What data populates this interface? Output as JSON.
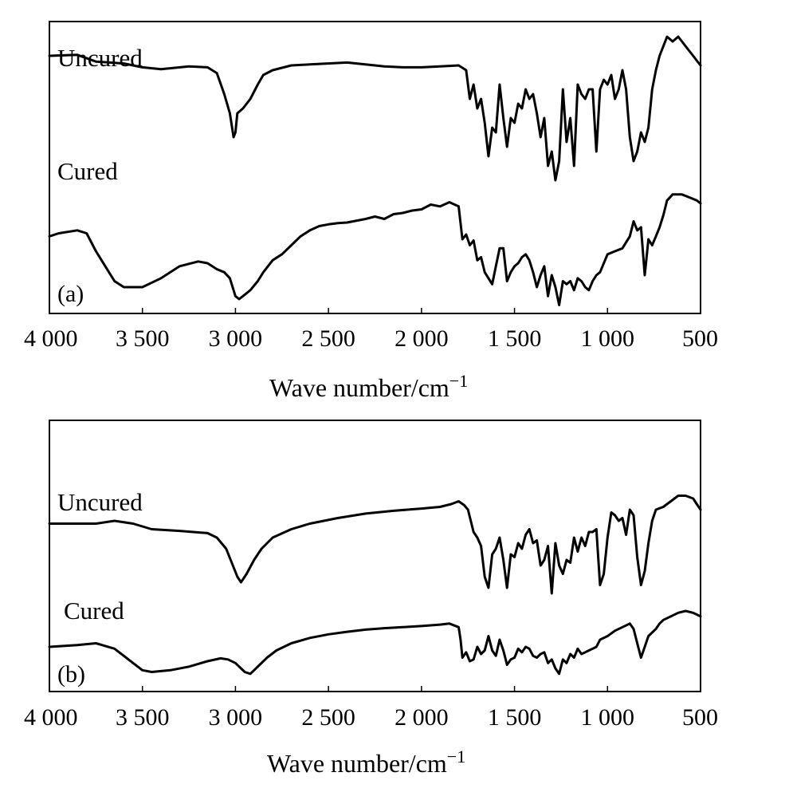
{
  "chart_data": [
    {
      "type": "line",
      "panel_label": "(a)",
      "xlabel": "Wave number/cm",
      "xlabel_superscript": "−1",
      "ylabel": "",
      "xlim": [
        4000,
        500
      ],
      "x_reversed": true,
      "ticks": [
        "4 000",
        "3 500",
        "3 000",
        "2 500",
        "2 000",
        "1 500",
        "1 000",
        "500"
      ],
      "tick_values": [
        4000,
        3500,
        3000,
        2500,
        2000,
        1500,
        1000,
        500
      ],
      "grid": false,
      "series": [
        {
          "name": "Uncured",
          "x": [
            4000,
            3850,
            3750,
            3600,
            3500,
            3400,
            3250,
            3150,
            3100,
            3060,
            3030,
            3010,
            3000,
            2990,
            2960,
            2920,
            2880,
            2850,
            2800,
            2700,
            2600,
            2400,
            2250,
            2200,
            2100,
            2000,
            1900,
            1800,
            1760,
            1740,
            1720,
            1700,
            1680,
            1660,
            1640,
            1620,
            1600,
            1580,
            1560,
            1540,
            1520,
            1500,
            1480,
            1460,
            1440,
            1420,
            1400,
            1380,
            1360,
            1340,
            1320,
            1300,
            1280,
            1260,
            1240,
            1220,
            1200,
            1180,
            1160,
            1140,
            1120,
            1100,
            1080,
            1060,
            1040,
            1020,
            1000,
            980,
            960,
            940,
            920,
            900,
            880,
            860,
            840,
            820,
            800,
            780,
            760,
            740,
            720,
            700,
            680,
            650,
            620,
            580,
            540,
            520,
            500
          ],
          "y": [
            0.25,
            0.26,
            0.19,
            0.17,
            0.13,
            0.11,
            0.14,
            0.13,
            0.07,
            -0.15,
            -0.35,
            -0.6,
            -0.55,
            -0.35,
            -0.3,
            -0.2,
            -0.05,
            0.05,
            0.1,
            0.15,
            0.16,
            0.18,
            0.15,
            0.14,
            0.13,
            0.13,
            0.14,
            0.15,
            0.1,
            -0.2,
            -0.05,
            -0.3,
            -0.2,
            -0.45,
            -0.8,
            -0.5,
            -0.55,
            -0.05,
            -0.4,
            -0.7,
            -0.4,
            -0.45,
            -0.25,
            -0.3,
            -0.1,
            -0.2,
            -0.15,
            -0.35,
            -0.6,
            -0.4,
            -0.9,
            -0.75,
            -1.05,
            -0.85,
            -0.1,
            -0.65,
            -0.4,
            -0.9,
            -0.05,
            -0.15,
            -0.2,
            -0.1,
            -0.1,
            -0.75,
            -0.1,
            0.0,
            -0.05,
            0.05,
            -0.2,
            -0.1,
            0.1,
            -0.1,
            -0.6,
            -0.85,
            -0.75,
            -0.55,
            -0.65,
            -0.5,
            -0.1,
            0.1,
            0.25,
            0.35,
            0.45,
            0.4,
            0.45,
            0.35,
            0.25,
            0.2,
            0.15
          ]
        },
        {
          "name": "Cured",
          "x": [
            4000,
            3950,
            3850,
            3800,
            3750,
            3650,
            3600,
            3500,
            3400,
            3300,
            3200,
            3150,
            3100,
            3060,
            3030,
            3010,
            3000,
            2980,
            2960,
            2920,
            2880,
            2850,
            2800,
            2750,
            2700,
            2650,
            2600,
            2550,
            2500,
            2450,
            2400,
            2300,
            2250,
            2200,
            2150,
            2100,
            2050,
            2000,
            1950,
            1900,
            1850,
            1800,
            1780,
            1760,
            1740,
            1720,
            1700,
            1680,
            1660,
            1640,
            1620,
            1600,
            1580,
            1560,
            1540,
            1520,
            1500,
            1480,
            1460,
            1440,
            1420,
            1400,
            1380,
            1360,
            1340,
            1320,
            1300,
            1280,
            1260,
            1240,
            1220,
            1200,
            1180,
            1160,
            1140,
            1120,
            1100,
            1080,
            1060,
            1040,
            1000,
            960,
            920,
            900,
            880,
            860,
            840,
            820,
            800,
            780,
            760,
            740,
            720,
            700,
            680,
            650,
            600,
            560,
            520,
            500
          ],
          "y": [
            -0.55,
            -0.5,
            -0.45,
            -0.5,
            -0.8,
            -1.3,
            -1.4,
            -1.4,
            -1.25,
            -1.05,
            -0.97,
            -1.0,
            -1.1,
            -1.15,
            -1.25,
            -1.45,
            -1.55,
            -1.6,
            -1.55,
            -1.45,
            -1.3,
            -1.15,
            -0.95,
            -0.85,
            -0.7,
            -0.55,
            -0.45,
            -0.38,
            -0.35,
            -0.33,
            -0.32,
            -0.26,
            -0.22,
            -0.26,
            -0.18,
            -0.16,
            -0.12,
            -0.1,
            -0.02,
            -0.05,
            0.02,
            -0.05,
            -0.6,
            -0.52,
            -0.7,
            -0.62,
            -0.95,
            -0.9,
            -1.15,
            -1.25,
            -1.35,
            -1.05,
            -0.75,
            -0.75,
            -1.3,
            -1.15,
            -1.05,
            -1.0,
            -0.9,
            -0.85,
            -0.95,
            -1.15,
            -1.4,
            -1.2,
            -1.05,
            -1.55,
            -1.2,
            -1.4,
            -1.7,
            -1.3,
            -1.35,
            -1.3,
            -1.45,
            -1.25,
            -1.3,
            -1.4,
            -1.45,
            -1.3,
            -1.2,
            -1.15,
            -0.85,
            -0.8,
            -0.75,
            -0.65,
            -0.55,
            -0.3,
            -0.45,
            -0.4,
            -1.2,
            -0.6,
            -0.7,
            -0.55,
            -0.4,
            -0.2,
            0.05,
            0.15,
            0.15,
            0.1,
            0.05,
            0.0
          ]
        }
      ]
    },
    {
      "type": "line",
      "panel_label": "(b)",
      "xlabel": "Wave number/cm",
      "xlabel_superscript": "−1",
      "ylabel": "",
      "xlim": [
        4000,
        500
      ],
      "x_reversed": true,
      "ticks": [
        "4 000",
        "3 500",
        "3 000",
        "2 500",
        "2 000",
        "1 500",
        "1 000",
        "500"
      ],
      "tick_values": [
        4000,
        3500,
        3000,
        2500,
        2000,
        1500,
        1000,
        500
      ],
      "grid": false,
      "series": [
        {
          "name": "Uncured",
          "x": [
            4000,
            3850,
            3750,
            3650,
            3550,
            3450,
            3300,
            3150,
            3100,
            3050,
            3020,
            2990,
            2970,
            2940,
            2900,
            2860,
            2800,
            2700,
            2600,
            2450,
            2300,
            2150,
            2000,
            1900,
            1840,
            1800,
            1770,
            1750,
            1720,
            1700,
            1680,
            1660,
            1640,
            1620,
            1600,
            1580,
            1560,
            1540,
            1520,
            1500,
            1480,
            1460,
            1440,
            1420,
            1400,
            1380,
            1360,
            1340,
            1320,
            1300,
            1280,
            1260,
            1240,
            1220,
            1200,
            1180,
            1160,
            1140,
            1120,
            1100,
            1080,
            1060,
            1040,
            1020,
            1000,
            980,
            960,
            940,
            920,
            900,
            880,
            860,
            840,
            820,
            800,
            780,
            760,
            740,
            700,
            660,
            620,
            580,
            540,
            520,
            500
          ],
          "y": [
            0.05,
            0.05,
            0.05,
            0.1,
            0.05,
            -0.05,
            -0.08,
            -0.12,
            -0.2,
            -0.4,
            -0.65,
            -0.9,
            -1.0,
            -0.85,
            -0.6,
            -0.4,
            -0.2,
            -0.05,
            0.05,
            0.15,
            0.23,
            0.28,
            0.32,
            0.35,
            0.4,
            0.45,
            0.38,
            0.3,
            -0.1,
            -0.2,
            -0.35,
            -0.9,
            -1.1,
            -0.5,
            -0.4,
            -0.2,
            -0.6,
            -1.1,
            -0.5,
            -0.55,
            -0.3,
            -0.4,
            -0.15,
            -0.05,
            -0.3,
            -0.25,
            -0.7,
            -0.6,
            -0.35,
            -1.2,
            -0.3,
            -0.7,
            -0.85,
            -0.6,
            -0.65,
            -0.2,
            -0.45,
            -0.2,
            -0.35,
            -0.1,
            -0.1,
            -0.05,
            -1.05,
            -0.85,
            -0.2,
            0.25,
            0.2,
            0.1,
            0.15,
            -0.15,
            0.3,
            0.2,
            -0.55,
            -1.05,
            -0.8,
            -0.3,
            0.1,
            0.3,
            0.35,
            0.45,
            0.55,
            0.55,
            0.5,
            0.4,
            0.3
          ]
        },
        {
          "name": "Cured",
          "x": [
            4000,
            3850,
            3750,
            3650,
            3600,
            3550,
            3500,
            3450,
            3350,
            3250,
            3150,
            3080,
            3040,
            3000,
            2970,
            2950,
            2920,
            2900,
            2870,
            2830,
            2780,
            2700,
            2600,
            2500,
            2400,
            2300,
            2200,
            2100,
            2000,
            1900,
            1850,
            1800,
            1790,
            1780,
            1760,
            1740,
            1720,
            1700,
            1680,
            1660,
            1640,
            1620,
            1600,
            1580,
            1560,
            1540,
            1520,
            1500,
            1480,
            1460,
            1440,
            1420,
            1400,
            1380,
            1360,
            1340,
            1320,
            1300,
            1280,
            1260,
            1240,
            1220,
            1200,
            1180,
            1160,
            1140,
            1120,
            1100,
            1080,
            1060,
            1040,
            1000,
            960,
            920,
            880,
            860,
            840,
            820,
            800,
            780,
            760,
            740,
            720,
            700,
            660,
            620,
            580,
            540,
            520,
            500
          ],
          "y": [
            -0.4,
            -0.35,
            -0.3,
            -0.45,
            -0.65,
            -0.85,
            -1.05,
            -1.1,
            -1.05,
            -0.95,
            -0.8,
            -0.72,
            -0.75,
            -0.85,
            -1.0,
            -1.1,
            -1.15,
            -1.05,
            -0.9,
            -0.7,
            -0.5,
            -0.3,
            -0.15,
            -0.05,
            0.02,
            0.08,
            0.12,
            0.15,
            0.18,
            0.22,
            0.25,
            0.15,
            -0.2,
            -0.7,
            -0.55,
            -0.8,
            -0.75,
            -0.4,
            -0.6,
            -0.5,
            -0.1,
            -0.5,
            -0.65,
            -0.2,
            -0.5,
            -0.9,
            -0.75,
            -0.7,
            -0.45,
            -0.55,
            -0.4,
            -0.45,
            -0.65,
            -0.7,
            -0.6,
            -0.55,
            -0.85,
            -0.75,
            -1.0,
            -1.15,
            -0.75,
            -0.85,
            -0.6,
            -0.7,
            -0.45,
            -0.6,
            -0.55,
            -0.5,
            -0.45,
            -0.4,
            -0.2,
            -0.1,
            0.05,
            0.15,
            0.25,
            0.1,
            -0.3,
            -0.7,
            -0.4,
            -0.1,
            0.0,
            0.1,
            0.25,
            0.35,
            0.45,
            0.55,
            0.6,
            0.55,
            0.5,
            0.45
          ]
        }
      ]
    }
  ]
}
